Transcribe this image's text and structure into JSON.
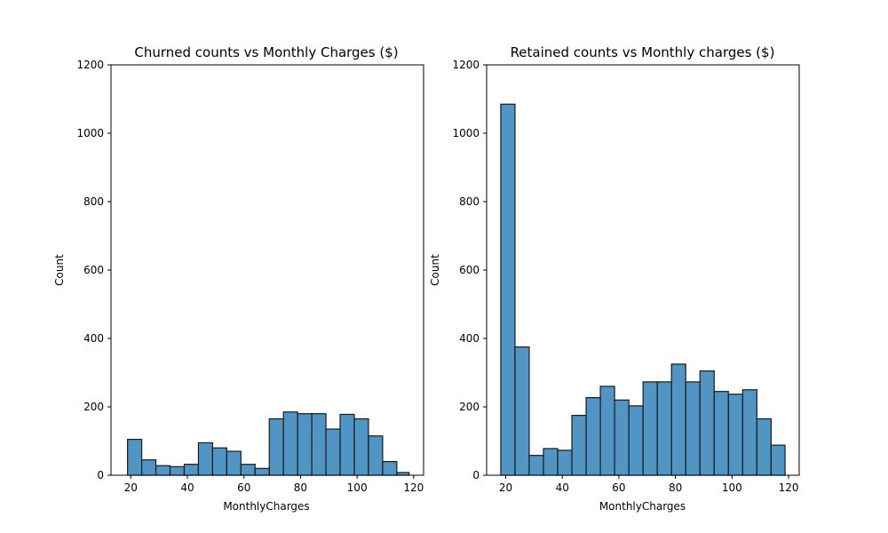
{
  "chart_data": [
    {
      "type": "bar",
      "title": "Churned counts vs Monthly Charges ($)",
      "xlabel": "MonthlyCharges",
      "ylabel": "Count",
      "xlim": [
        13,
        123.5
      ],
      "ylim": [
        0,
        1200
      ],
      "xticks": [
        20,
        40,
        60,
        80,
        100,
        120
      ],
      "yticks": [
        0,
        200,
        400,
        600,
        800,
        1000,
        1200
      ],
      "bin_edges": [
        18.85,
        23.86,
        28.87,
        33.88,
        38.89,
        43.9,
        48.91,
        53.92,
        58.93,
        63.94,
        68.95,
        73.96,
        78.97,
        83.98,
        88.99,
        94.0,
        99.01,
        104.02,
        109.03,
        114.04,
        118.35
      ],
      "values": [
        105,
        45,
        28,
        25,
        32,
        95,
        80,
        70,
        32,
        20,
        165,
        185,
        180,
        180,
        135,
        178,
        165,
        115,
        40,
        8
      ],
      "grid": false
    },
    {
      "type": "bar",
      "title": "Retained counts vs Monthly charges ($)",
      "xlabel": "MonthlyCharges",
      "ylabel": "Count",
      "xlim": [
        13.25,
        123.75
      ],
      "ylim": [
        0,
        1200
      ],
      "xticks": [
        20,
        40,
        60,
        80,
        100,
        120
      ],
      "yticks": [
        0,
        200,
        400,
        600,
        800,
        1000,
        1200
      ],
      "bin_edges": [
        18.25,
        23.28,
        28.31,
        33.34,
        38.37,
        43.4,
        48.43,
        53.46,
        58.49,
        63.52,
        68.55,
        73.58,
        78.61,
        83.64,
        88.67,
        93.7,
        98.73,
        103.76,
        108.79,
        113.82,
        118.75
      ],
      "values": [
        1085,
        375,
        58,
        78,
        73,
        175,
        227,
        260,
        220,
        203,
        273,
        273,
        325,
        273,
        305,
        245,
        237,
        250,
        165,
        88
      ],
      "grid": false
    }
  ]
}
